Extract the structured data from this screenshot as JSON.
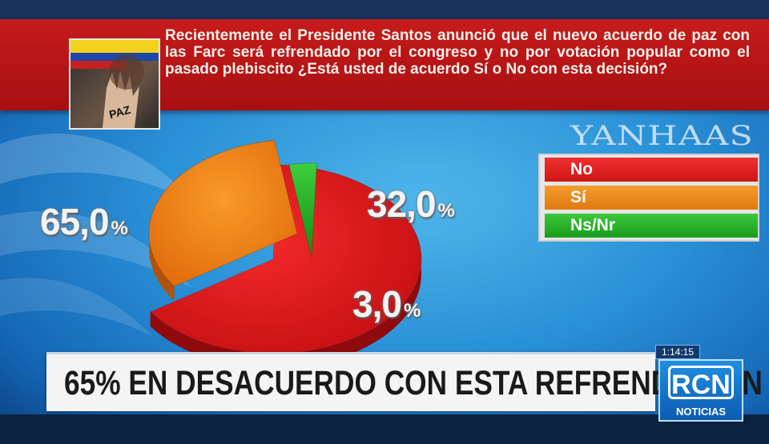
{
  "question": {
    "text": "Recientemente el Presidente Santos anunció que el nuevo acuerdo de paz con las Farc será refrendado por el congreso y no por votación popular como el pasado plebiscito ¿Está usted de acuerdo Sí o No con esta decisión?",
    "photo_text": "PAZ"
  },
  "brand": {
    "pollster": "YANHAAS"
  },
  "chart_data": {
    "type": "pie",
    "slices": [
      {
        "name": "No",
        "value": 65.0,
        "color": "#e01c1c"
      },
      {
        "name": "Sí",
        "value": 32.0,
        "color": "#f07a12"
      },
      {
        "name": "Ns/Nr",
        "value": 3.0,
        "color": "#2bb52b"
      }
    ],
    "labels": [
      {
        "num": "65,0",
        "sign": "%"
      },
      {
        "num": "32,0",
        "sign": "%"
      },
      {
        "num": "3,0",
        "sign": "%"
      }
    ],
    "legend": [
      "No",
      "Sí",
      "Ns/Nr"
    ],
    "legend_position": "right"
  },
  "headline": {
    "text": "65% EN DESACUERDO CON ESTA REFRENDACIÓN"
  },
  "broadcast": {
    "clock": "1:14:15",
    "channel_mark": "RCN",
    "channel_label": "NOTICIAS"
  }
}
